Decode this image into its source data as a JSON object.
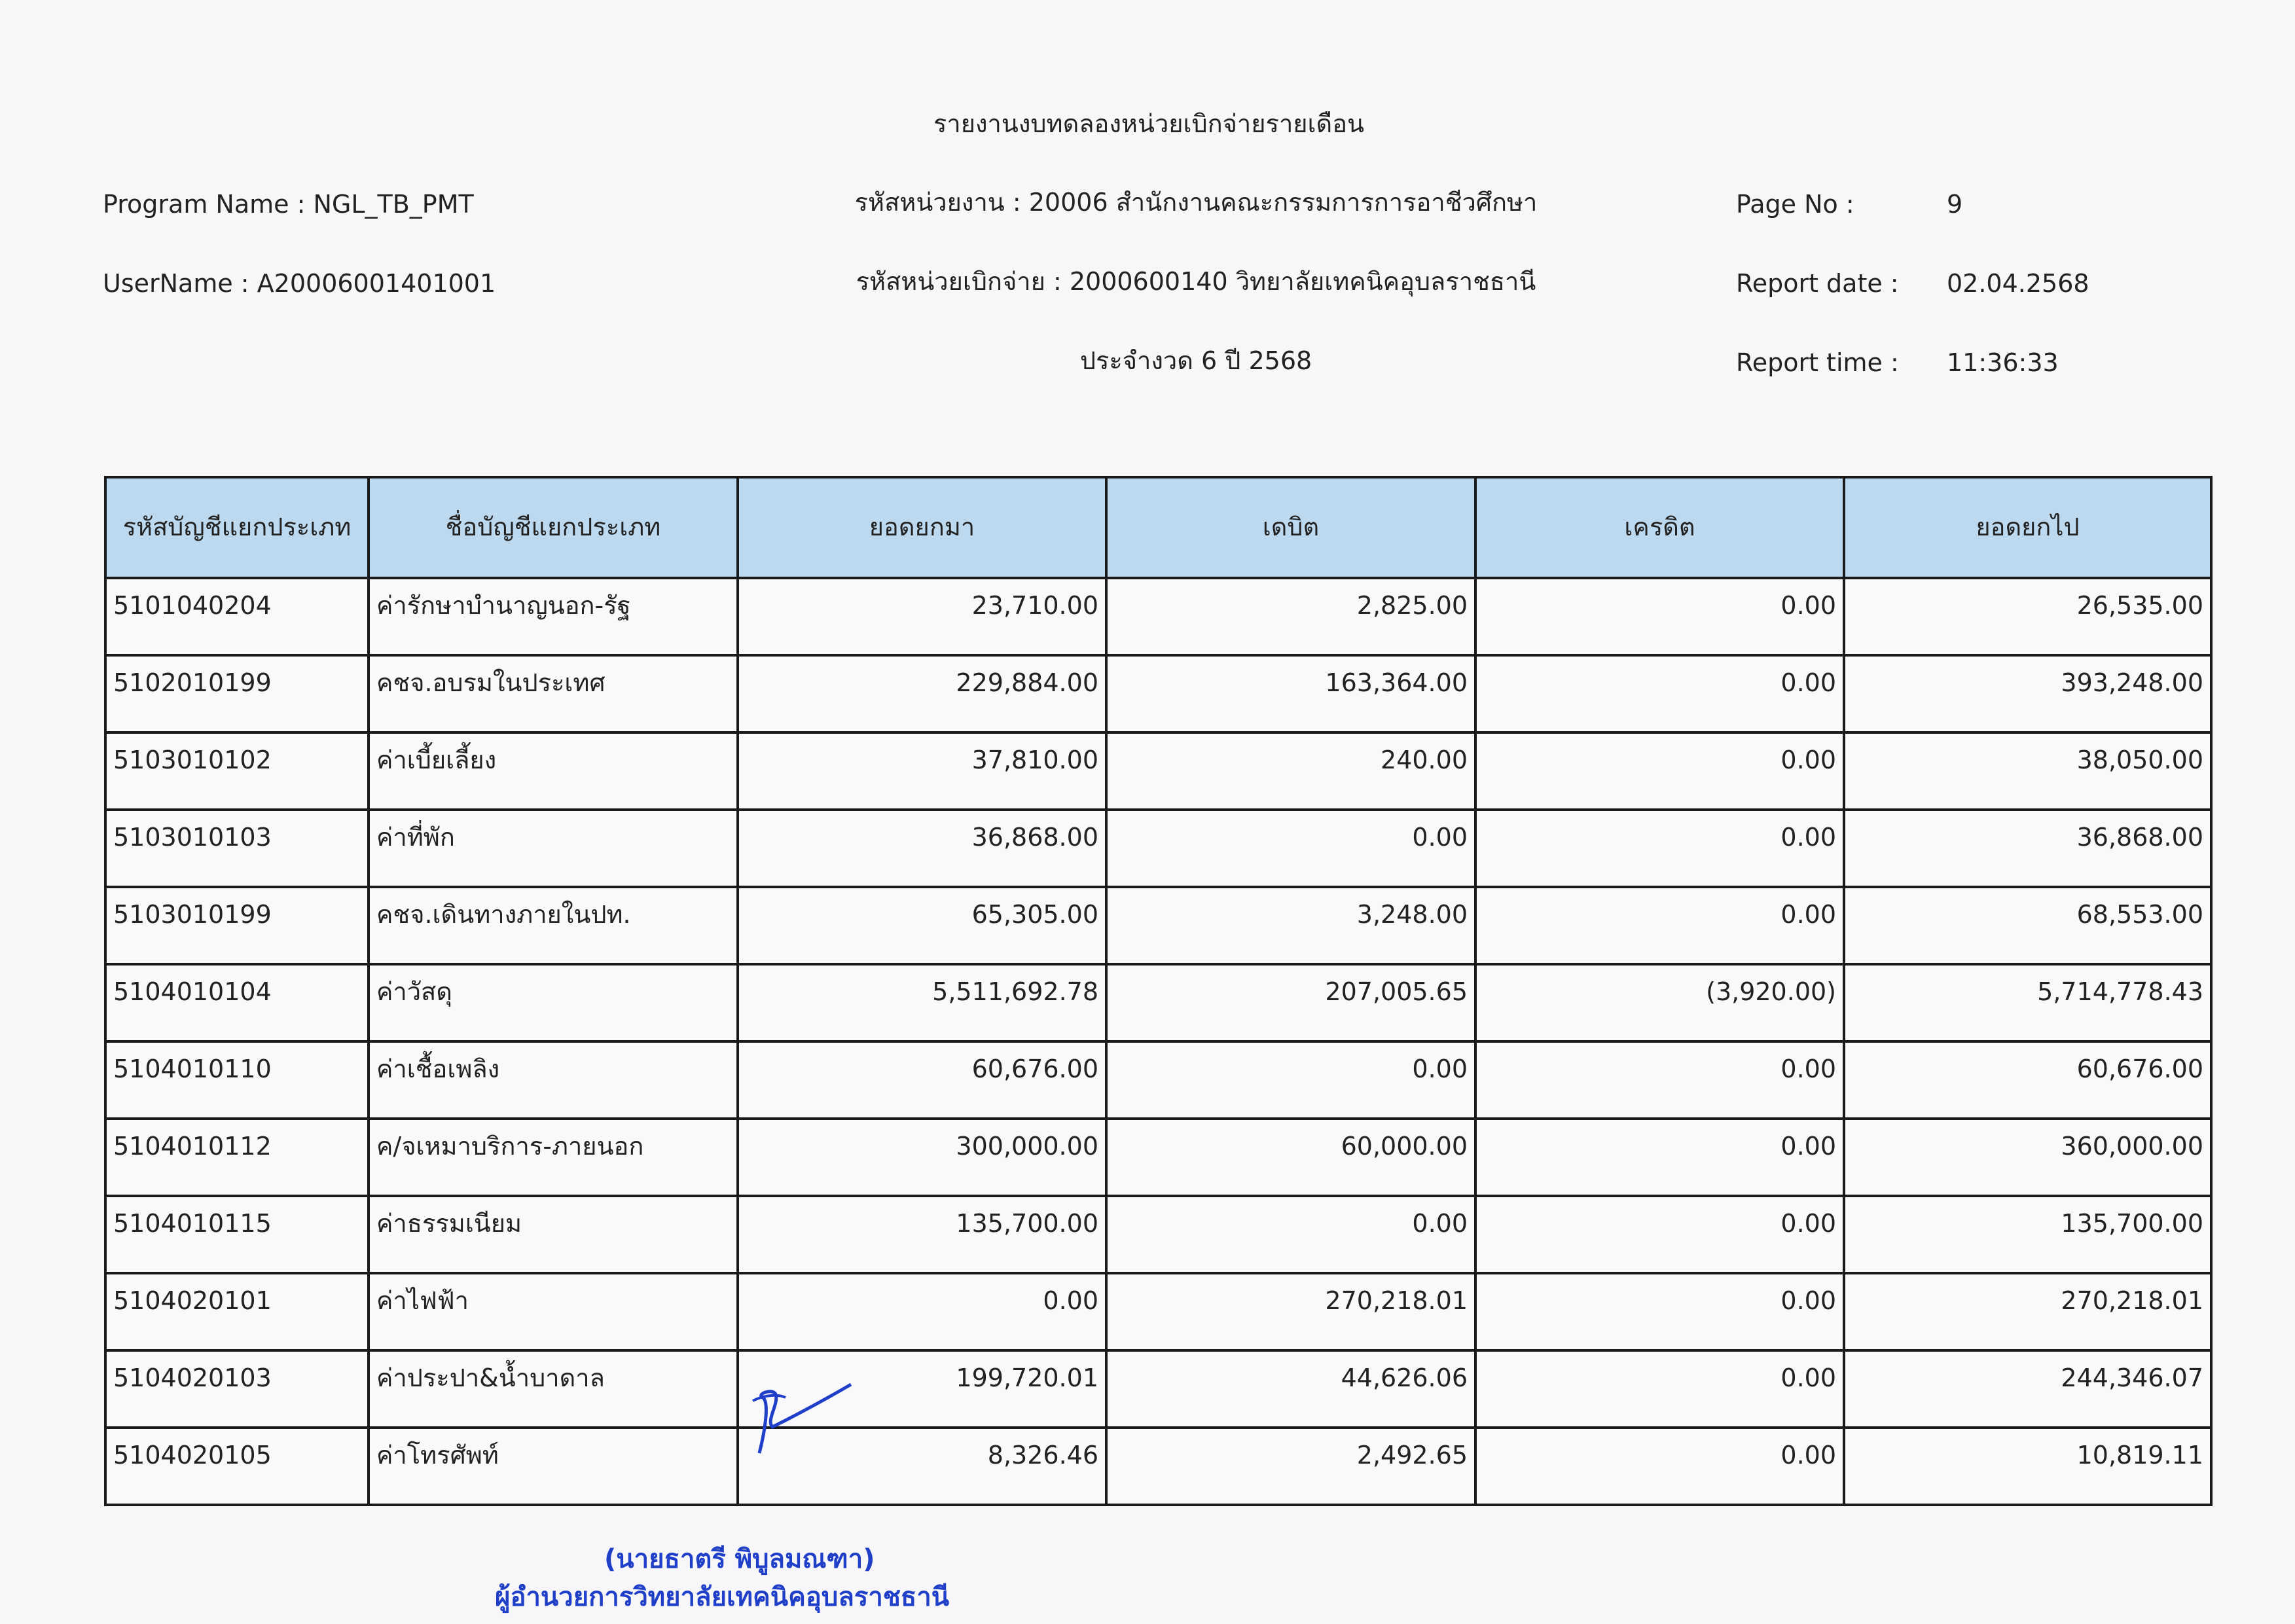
{
  "report": {
    "title": "รายงานงบทดลองหน่วยเบิกจ่ายรายเดือน",
    "program_name": "Program Name : NGL_TB_PMT",
    "username": "UserName : A20006001401001",
    "agency": "รหัสหน่วยงาน : 20006 สำนักงานคณะกรรมการการอาชีวศึกษา",
    "disbursing_unit": "รหัสหน่วยเบิกจ่าย : 2000600140 วิทยาลัยเทคนิคอุบลราชธานี",
    "period": "ประจำงวด 6 ปี 2568",
    "page_no_label": "Page No :",
    "page_no": "9",
    "report_date_label": "Report date :",
    "report_date": "02.04.2568",
    "report_time_label": "Report time :",
    "report_time": "11:36:33"
  },
  "table": {
    "headers": [
      "รหัสบัญชีแยกประเภท",
      "ชื่อบัญชีแยกประเภท",
      "ยอดยกมา",
      "เดบิต",
      "เครดิต",
      "ยอดยกไป"
    ],
    "rows": [
      [
        "5101040204",
        "ค่ารักษาบำนาญนอก-รัฐ",
        "23,710.00",
        "2,825.00",
        "0.00",
        "26,535.00"
      ],
      [
        "5102010199",
        "คชจ.อบรมในประเทศ",
        "229,884.00",
        "163,364.00",
        "0.00",
        "393,248.00"
      ],
      [
        "5103010102",
        "ค่าเบี้ยเลี้ยง",
        "37,810.00",
        "240.00",
        "0.00",
        "38,050.00"
      ],
      [
        "5103010103",
        "ค่าที่พัก",
        "36,868.00",
        "0.00",
        "0.00",
        "36,868.00"
      ],
      [
        "5103010199",
        "คชจ.เดินทางภายในปท.",
        "65,305.00",
        "3,248.00",
        "0.00",
        "68,553.00"
      ],
      [
        "5104010104",
        "ค่าวัสดุ",
        "5,511,692.78",
        "207,005.65",
        "(3,920.00)",
        "5,714,778.43"
      ],
      [
        "5104010110",
        "ค่าเชื้อเพลิง",
        "60,676.00",
        "0.00",
        "0.00",
        "60,676.00"
      ],
      [
        "5104010112",
        "ค/จเหมาบริการ-ภายนอก",
        "300,000.00",
        "60,000.00",
        "0.00",
        "360,000.00"
      ],
      [
        "5104010115",
        "ค่าธรรมเนียม",
        "135,700.00",
        "0.00",
        "0.00",
        "135,700.00"
      ],
      [
        "5104020101",
        "ค่าไฟฟ้า",
        "0.00",
        "270,218.01",
        "0.00",
        "270,218.01"
      ],
      [
        "5104020103",
        "ค่าประปา&น้ำบาดาล",
        "199,720.01",
        "44,626.06",
        "0.00",
        "244,346.07"
      ],
      [
        "5104020105",
        "ค่าโทรศัพท์",
        "8,326.46",
        "2,492.65",
        "0.00",
        "10,819.11"
      ]
    ]
  },
  "stamp": {
    "name": "(นายธาตรี  พิบูลมณฑา)",
    "position": "ผู้อำนวยการวิทยาลัยเทคนิคอุบลราชธานี",
    "color": "#1f3fc9"
  },
  "colors": {
    "header_bg": "#bcd9f0"
  }
}
